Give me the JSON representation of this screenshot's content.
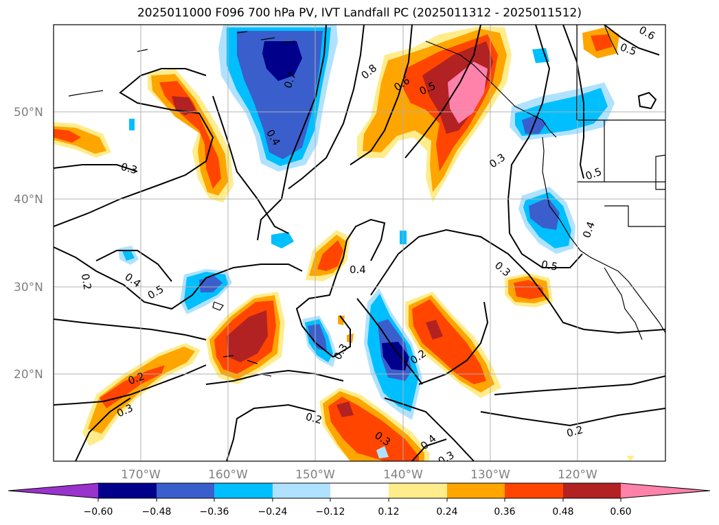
{
  "title": "2025011000 F096 700 hPa PV, IVT Landfall PC (2025011312 - 2025011512)",
  "latitude_labels": [
    "50°N",
    "40°N",
    "30°N",
    "20°N"
  ],
  "longitude_labels": [
    "170°W",
    "160°W",
    "150°W",
    "140°W",
    "130°W",
    "120°W"
  ],
  "colorbar": {
    "ticks": [
      "−0.60",
      "−0.48",
      "−0.36",
      "−0.24",
      "−0.12",
      "0.12",
      "0.24",
      "0.36",
      "0.48",
      "0.60"
    ],
    "colors": [
      "#9933cc",
      "#00008b",
      "#3a5fcd",
      "#00bfff",
      "#b0e2ff",
      "#ffffff",
      "#ffec8b",
      "#ffa500",
      "#ff4500",
      "#b22222",
      "#ff82ab"
    ]
  },
  "contour_labels": [
    "0.8",
    "0.6",
    "0.5",
    "0.3",
    "0.4",
    "0.7",
    "0.6",
    "0.5",
    "0.3",
    "0.5",
    "0.4",
    "0.2",
    "0.4",
    "0.5",
    "0.4",
    "0.3",
    "0.5",
    "0.3",
    "0.2",
    "0.2",
    "0.3",
    "0.2",
    "0.3",
    "0.4",
    "0.3",
    "0.2"
  ]
}
